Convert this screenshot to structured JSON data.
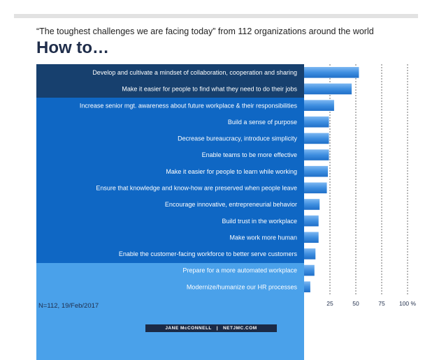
{
  "header": {
    "subtitle": "“The toughest challenges we are facing today” from 112 organizations around the world",
    "title": "How to…"
  },
  "note": "N=112, 19/Feb/2017",
  "footer": {
    "left": "JANE McCONNELL",
    "right": "NETJMC.COM"
  },
  "colors": {
    "band_dark": "#17406e",
    "band_mid": "#0f67c4",
    "band_light": "#4aa1ea",
    "bar": "#3f8fe0",
    "gridline": "#333333",
    "title": "#1f2d4a"
  },
  "chart_data": {
    "type": "bar",
    "orientation": "horizontal",
    "categories": [
      "Develop and cultivate a mindset of collaboration, cooperation and sharing",
      "Make it easier for people to find what they need to do their jobs",
      "Increase senior mgt. awareness about future workplace & their responsibilities",
      "Build a sense of purpose",
      "Decrease bureaucracy, introduce simplicity",
      "Enable teams to be more effective",
      "Make it easier for people to learn while working",
      "Ensure that knowledge and know-how are preserved when people leave",
      "Encourage innovative, entrepreneurial behavior",
      "Build trust in the workplace",
      "Make work more human",
      "Enable the customer-facing workforce to better serve customers",
      "Prepare for a more automated workplace",
      "Modernize/humanize our HR processes"
    ],
    "values": [
      53,
      46,
      29,
      24,
      24,
      24,
      23,
      22,
      15,
      14,
      14,
      11,
      10,
      6
    ],
    "groups": [
      2,
      6,
      6
    ],
    "xlim": [
      0,
      100
    ],
    "xticks": [
      25,
      50,
      75,
      100
    ],
    "xtick_labels": [
      "25",
      "50",
      "75",
      "100 %"
    ],
    "gridlines": "vertical dashed",
    "legend": "none"
  }
}
